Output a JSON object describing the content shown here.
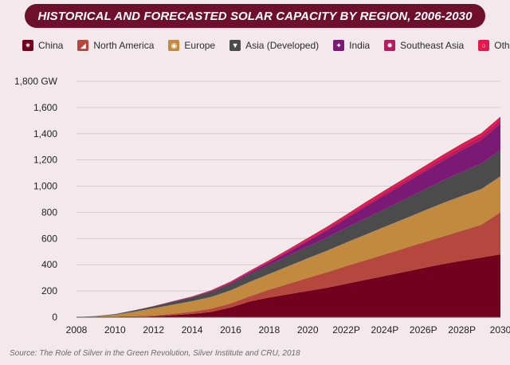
{
  "chart_data": {
    "type": "area",
    "stacked": true,
    "title": "HISTORICAL AND FORECASTED SOLAR CAPACITY BY REGION, 2006-2030",
    "x": [
      2008,
      2009,
      2010,
      2011,
      2012,
      2013,
      2014,
      2015,
      2016,
      2017,
      2018,
      2019,
      2020,
      2021,
      2022,
      2023,
      2024,
      2025,
      2026,
      2027,
      2028,
      2029,
      2030
    ],
    "xticks": [
      "2008",
      "2010",
      "2012",
      "2014",
      "2016",
      "2018",
      "2020",
      "2022P",
      "2024P",
      "2026P",
      "2028P",
      "2030"
    ],
    "yticks": [
      "1,800 GW",
      "1,600",
      "1,400",
      "1,200",
      "1,000",
      "800",
      "600",
      "400",
      "200",
      "0"
    ],
    "ylim": [
      0,
      1800
    ],
    "xlim": [
      2008,
      2030
    ],
    "legend_position": "top",
    "series": [
      {
        "name": "China",
        "color": "#74001f",
        "icon": "china-icon",
        "values": [
          0,
          1,
          2,
          3,
          6,
          15,
          25,
          40,
          75,
          120,
          150,
          175,
          200,
          225,
          255,
          285,
          315,
          345,
          375,
          405,
          430,
          455,
          480
        ]
      },
      {
        "name": "North America",
        "color": "#b5473f",
        "icon": "north-america-icon",
        "values": [
          0,
          1,
          2,
          4,
          7,
          11,
          17,
          25,
          30,
          40,
          60,
          80,
          100,
          118,
          135,
          150,
          165,
          180,
          195,
          210,
          230,
          250,
          320
        ]
      },
      {
        "name": "Europe",
        "color": "#c18a3e",
        "icon": "europe-icon",
        "values": [
          0,
          5,
          15,
          35,
          55,
          70,
          80,
          90,
          100,
          110,
          120,
          135,
          150,
          165,
          180,
          195,
          210,
          225,
          240,
          255,
          265,
          272,
          275
        ]
      },
      {
        "name": "Asia (Developed)",
        "color": "#4b4b4b",
        "icon": "asia-developed-icon",
        "values": [
          0,
          2,
          5,
          10,
          15,
          22,
          30,
          40,
          50,
          60,
          70,
          80,
          90,
          100,
          112,
          124,
          136,
          148,
          160,
          172,
          185,
          195,
          200
        ]
      },
      {
        "name": "India",
        "color": "#7a1a74",
        "icon": "india-icon",
        "values": [
          0,
          0,
          0,
          0,
          1,
          2,
          3,
          5,
          8,
          12,
          18,
          28,
          40,
          55,
          70,
          90,
          105,
          120,
          135,
          150,
          165,
          180,
          200
        ]
      },
      {
        "name": "Southeast Asia",
        "color": "#b81b5e",
        "icon": "southeast-asia-icon",
        "values": [
          0,
          0,
          0,
          0,
          0,
          0,
          1,
          2,
          3,
          4,
          6,
          8,
          10,
          12,
          14,
          16,
          18,
          20,
          22,
          24,
          26,
          28,
          30
        ]
      },
      {
        "name": "Other",
        "color": "#e6174f",
        "icon": "other-icon",
        "values": [
          0,
          0,
          0,
          0,
          1,
          2,
          3,
          5,
          7,
          9,
          11,
          13,
          15,
          16,
          17,
          18,
          19,
          20,
          21,
          22,
          23,
          24,
          25
        ]
      }
    ]
  },
  "source": "Source: The Role of Silver in the Green Revolution, Silver Institute and CRU, 2018"
}
